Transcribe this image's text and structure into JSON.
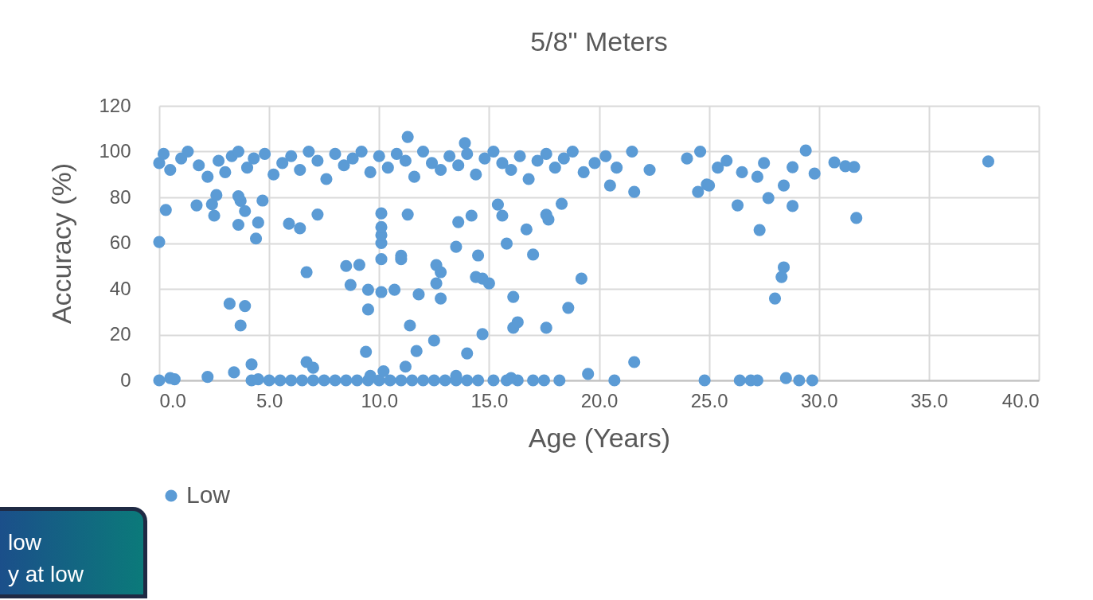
{
  "chart_data": {
    "type": "scatter",
    "title": "5/8\" Meters",
    "xlabel": "Age (Years)",
    "ylabel": "Accuracy (%)",
    "xlim": [
      0,
      40
    ],
    "xticks": [
      {
        "value": 0,
        "label": "0.0"
      },
      {
        "value": 5,
        "label": "5.0"
      },
      {
        "value": 10,
        "label": "10.0"
      },
      {
        "value": 15,
        "label": "15.0"
      },
      {
        "value": 20,
        "label": "20.0"
      },
      {
        "value": 25,
        "label": "25.0"
      },
      {
        "value": 30,
        "label": "30.0"
      },
      {
        "value": 35,
        "label": "35.0"
      },
      {
        "value": 40,
        "label": "40.0"
      }
    ],
    "ylim": [
      0,
      120
    ],
    "yticks": [
      0,
      20,
      40,
      60,
      80,
      100,
      120
    ],
    "grid": true,
    "legend": "bottom",
    "marker": "circle",
    "annotations": [
      "low",
      "y at low"
    ],
    "series": [
      {
        "name": "Low",
        "color": "#5b9bd5",
        "x": [
          0,
          0.3,
          1.7,
          2.4,
          2.5,
          2.6,
          3.2,
          3.6,
          3.7,
          3.9,
          3.9,
          3.7,
          3.6,
          4.4,
          4.5,
          4.7,
          3.4,
          4.2,
          6.7,
          5.9,
          6.4,
          7.2,
          6.7,
          7,
          8.5,
          9.1,
          8.7,
          9.5,
          9.5,
          9.4,
          10.1,
          10.1,
          10.1,
          10.1,
          10.1,
          10.1,
          10.7,
          11,
          11,
          11.3,
          11.4,
          11.8,
          11.7,
          12.5,
          12.6,
          12.6,
          12.8,
          12.8,
          13.5,
          13.6,
          14,
          14.2,
          14.5,
          14.4,
          14.7,
          15,
          14.7,
          15.4,
          15.6,
          15.8,
          16.1,
          16.1,
          16.3,
          16.7,
          17,
          17.6,
          17.6,
          17.7,
          18.3,
          18.6,
          19.2,
          19.5,
          20.7,
          20.5,
          21.6,
          21.6,
          24.5,
          24.9,
          25,
          26.3,
          27.3,
          27.7,
          28.4,
          28.3,
          28,
          28.8,
          31.7,
          37.7,
          30.7,
          31.2,
          31.6,
          29.8,
          29.4,
          28.8,
          28.4,
          11.3,
          13.9,
          0,
          0.5,
          0.7,
          2.2,
          4.2,
          4.5,
          5,
          5.5,
          6,
          6.5,
          7,
          7.5,
          8,
          8.5,
          9,
          9.5,
          10,
          10.5,
          11,
          11.5,
          12,
          12.5,
          13,
          13.5,
          14,
          14.5,
          15.2,
          15.8,
          16.3,
          17,
          17.5,
          18.2,
          24.8,
          26.4,
          26.9,
          27.2,
          28.5,
          29.1,
          29.7,
          9.6,
          10.2,
          11.2,
          13.5,
          16,
          0,
          0.2,
          0.5,
          1,
          1.3,
          1.8,
          2.2,
          2.7,
          3,
          3.3,
          3.6,
          4,
          4.3,
          4.8,
          5.2,
          5.6,
          6,
          6.4,
          6.8,
          7.2,
          7.6,
          8,
          8.4,
          8.8,
          9.2,
          9.6,
          10,
          10.4,
          10.8,
          11.2,
          11.6,
          12,
          12.4,
          12.8,
          13.2,
          13.6,
          14,
          14.4,
          14.8,
          15.2,
          15.6,
          16,
          16.4,
          16.8,
          17.2,
          17.6,
          18,
          18.4,
          18.8,
          19.3,
          19.8,
          20.3,
          20.8,
          21.5,
          22.3,
          24,
          24.6,
          25.4,
          25.8,
          26.5,
          27.2,
          27.5
        ],
        "values": [
          60.5,
          74.5,
          76.5,
          77,
          72,
          81,
          33.5,
          68,
          24,
          32.5,
          74,
          78.5,
          80.5,
          62,
          69,
          78.6,
          3.5,
          7,
          47.3,
          68.5,
          66.5,
          72.5,
          8,
          5.5,
          50,
          50.5,
          41.7,
          39.6,
          31,
          12.5,
          73,
          60,
          63.5,
          67,
          53,
          38.6,
          39.6,
          54.5,
          53,
          72.5,
          24,
          37.6,
          12.8,
          17.4,
          50.4,
          42.4,
          47.3,
          35.8,
          58.4,
          69.2,
          11.8,
          72,
          54.6,
          45.2,
          44.5,
          42.4,
          20.2,
          76.8,
          72,
          59.8,
          36.5,
          23,
          25.4,
          66,
          55,
          23,
          72.4,
          70.3,
          77.2,
          31.7,
          44.5,
          2.8,
          0,
          85.2,
          82.4,
          8,
          82.4,
          85.6,
          85.2,
          76.5,
          65.7,
          79.7,
          49.4,
          45.2,
          35.8,
          76.2,
          71,
          95.7,
          95.3,
          93.6,
          93.3,
          90.4,
          100.5,
          93.2,
          85.2,
          106.4,
          103.7,
          0,
          1,
          0.5,
          1.5,
          0,
          0.5,
          0,
          0,
          0,
          0,
          0,
          0,
          0,
          0,
          0,
          0,
          0,
          0,
          0,
          0,
          0,
          0,
          0,
          0,
          0,
          0,
          0,
          0,
          0,
          0,
          0,
          0,
          0,
          0,
          0,
          0,
          1,
          0,
          0,
          2,
          4,
          6,
          2,
          1,
          95,
          99,
          92,
          97,
          100,
          94,
          89,
          96,
          91,
          98,
          100,
          93,
          97,
          99,
          90,
          95,
          98,
          92,
          100,
          96,
          88,
          99,
          94,
          97,
          100,
          91,
          98,
          93,
          99,
          96,
          89,
          100,
          95,
          92,
          98,
          94,
          99,
          90,
          97,
          100,
          95,
          92,
          98,
          88,
          96,
          99,
          93,
          97,
          100,
          91,
          95,
          98,
          93,
          100,
          92,
          97,
          100,
          93,
          96,
          91,
          89,
          95
        ]
      }
    ]
  }
}
